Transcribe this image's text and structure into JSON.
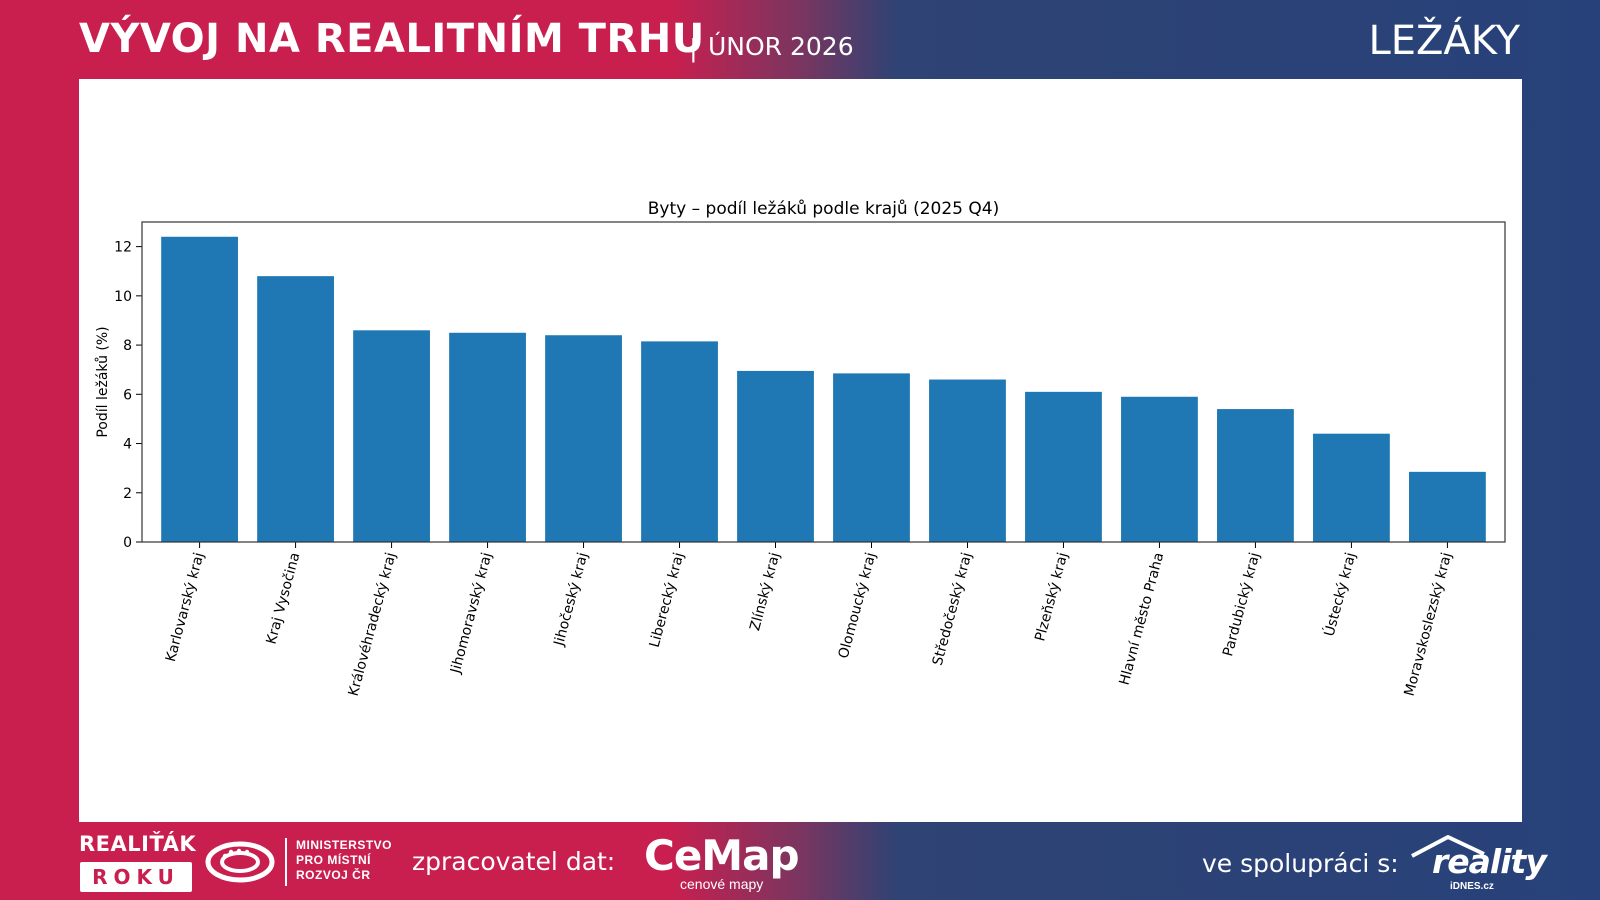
{
  "header": {
    "title": "VÝVOJ NA REALITNÍM TRHU",
    "separator": "|",
    "date": "ÚNOR 2026",
    "section": "LEŽÁKY"
  },
  "footer": {
    "award_line1": "REALIŤÁK",
    "award_line2": "ROKU",
    "ministry_lines": [
      "MINISTERSTVO",
      "PRO MÍSTNÍ",
      "ROZVOJ ČR"
    ],
    "processor_label": "zpracovatel dat:",
    "processor_name": "CeMap",
    "processor_sub": "cenové mapy",
    "coop_label": "ve spolupráci s:",
    "partner_name": "reality",
    "partner_sub": "iDNES.cz"
  },
  "colors": {
    "accent_red": "#c81f4f",
    "accent_blue": "#27427a",
    "bar": "#1f77b4"
  },
  "chart_data": {
    "type": "bar",
    "title": "Byty – podíl ležáků podle krajů (2025 Q4)",
    "xlabel": "",
    "ylabel": "Podíl ležáků (%)",
    "ylim": [
      0,
      13
    ],
    "yticks": [
      0,
      2,
      4,
      6,
      8,
      10,
      12
    ],
    "categories": [
      "Karlovarský kraj",
      "Kraj Vysočina",
      "Královéhradecký kraj",
      "Jihomoravský kraj",
      "Jihočeský kraj",
      "Liberecký kraj",
      "Zlínský kraj",
      "Olomoucký kraj",
      "Středočeský kraj",
      "Plzeňský kraj",
      "Hlavní město Praha",
      "Pardubický kraj",
      "Ústecký kraj",
      "Moravskoslezský kraj"
    ],
    "values": [
      12.4,
      10.8,
      8.6,
      8.5,
      8.4,
      8.15,
      6.95,
      6.85,
      6.6,
      6.1,
      5.9,
      5.4,
      4.4,
      2.85
    ]
  }
}
